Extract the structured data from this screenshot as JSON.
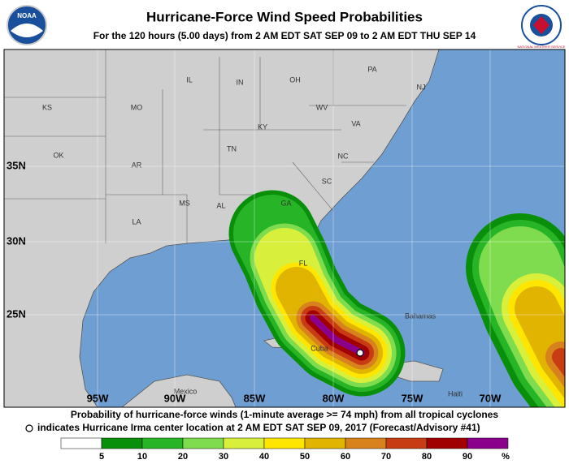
{
  "header": {
    "title": "Hurricane-Force Wind Speed Probabilities",
    "subtitle": "For the 120 hours (5.00 days) from 2 AM EDT SAT SEP 09 to 2 AM EDT THU SEP 14",
    "logo_left": "NOAA",
    "logo_right": "NATIONAL WEATHER SERVICE"
  },
  "map": {
    "labels": [
      "KS",
      "MO",
      "IL",
      "IN",
      "OH",
      "PA",
      "NJ",
      "KY",
      "WV",
      "VA",
      "OK",
      "AR",
      "TN",
      "NC",
      "SC",
      "MS",
      "AL",
      "GA",
      "LA",
      "FL",
      "Bahamas",
      "Cuba",
      "Mexico",
      "Haiti"
    ],
    "lat_labels": [
      "35N",
      "30N",
      "25N"
    ],
    "lon_labels": [
      "95W",
      "90W",
      "85W",
      "80W",
      "75W",
      "70W"
    ]
  },
  "legend": {
    "caption": "Probability of hurricane-force winds (1-minute average >= 74 mph) from all tropical cyclones",
    "marker_note": "indicates Hurricane Irma center location at 2 AM EDT SAT SEP 09, 2017 (Forecast/Advisory #41)",
    "colors": [
      "#ffffff",
      "#0a8f0a",
      "#27b427",
      "#7fdc4e",
      "#d8f03c",
      "#ffe600",
      "#e0b400",
      "#d8821e",
      "#c83c14",
      "#a00000",
      "#8a008a"
    ],
    "ticks": [
      5,
      10,
      20,
      30,
      40,
      50,
      60,
      70,
      80,
      90
    ],
    "unit": "%"
  }
}
